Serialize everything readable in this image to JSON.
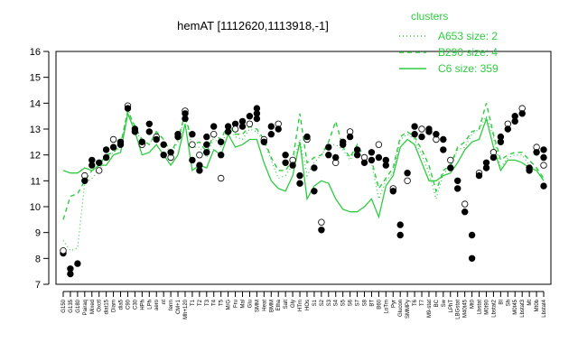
{
  "chart_data": {
    "type": "line",
    "title": "hemAT [1112620,1113918,-1]",
    "xlabel": "",
    "ylabel": "",
    "ylim": [
      7,
      16
    ],
    "yticks": [
      7,
      8,
      9,
      10,
      11,
      12,
      13,
      14,
      15,
      16
    ],
    "x_labels": [
      "G150",
      "G135",
      "G180",
      "Pairaq",
      "Mixed",
      "Oxctl",
      "diat15",
      "Diam",
      "dia5",
      "C90",
      "C30",
      "HPh",
      "LPh",
      "aero",
      "nt",
      "ferm",
      "CM+1",
      "Mh+120",
      "T1",
      "T2",
      "T3",
      "T4",
      "T5",
      "M/G",
      "Fru",
      "Mal",
      "Glu",
      "SMM",
      "Heat",
      "BMM",
      "Etha",
      "Salt",
      "Gly",
      "HTm",
      "HOs",
      "S1",
      "S2",
      "S3",
      "S4",
      "S5",
      "S6",
      "S7",
      "S8",
      "BT",
      "B60",
      "LoTm",
      "Pyr",
      "Glucon",
      "SMMPy",
      "T6",
      "T7",
      "M9-stat",
      "BC",
      "Sw",
      "LPhT",
      "LBGstat",
      "M40t45",
      "Mt0",
      "Lbstat",
      "M0t90",
      "Lbstat2",
      "BI",
      "Sh",
      "M0t45",
      "Lbstat3",
      "Mt",
      "Mt0b",
      "Lbstat4"
    ],
    "legend": {
      "title": "clusters",
      "position": "top-right",
      "entries": [
        {
          "label": "A653 size: 2",
          "style": "dotted"
        },
        {
          "label": "B290 size: 4",
          "style": "dashed"
        },
        {
          "label": "C6 size: 359",
          "style": "solid"
        }
      ]
    },
    "colors": {
      "series": "#2ecc40",
      "points": "#000000",
      "highlight": "#ffffff"
    },
    "series": [
      {
        "name": "A653 size: 2",
        "style": "dotted",
        "values": [
          8.7,
          8.3,
          8.4,
          10.9,
          11.1,
          11.4,
          11.9,
          12.1,
          12.3,
          13.8,
          13.0,
          12.5,
          12.4,
          12.9,
          12.6,
          12.0,
          12.5,
          13.5,
          12.3,
          12.3,
          11.9,
          12.7,
          12.3,
          13.1,
          12.7,
          12.6,
          13.0,
          12.9,
          12.5,
          11.8,
          11.1,
          11.2,
          11.6,
          12.6,
          11.2,
          11.7,
          12.0,
          12.4,
          12.4,
          12.2,
          11.8,
          12.3,
          11.7,
          11.7,
          10.3,
          11.0,
          11.3,
          12.6,
          12.8,
          12.6,
          12.0,
          11.3,
          10.3,
          11.3,
          11.5,
          12.2,
          12.3,
          12.8,
          13.0,
          13.5,
          12.7,
          11.5,
          11.9,
          12.0,
          12.0,
          11.6,
          11.4,
          11.0
        ]
      },
      {
        "name": "B290 size: 4",
        "style": "dashed",
        "values": [
          9.5,
          10.4,
          10.5,
          11.0,
          11.4,
          11.6,
          12.0,
          12.1,
          12.4,
          13.7,
          13.1,
          12.6,
          12.4,
          12.9,
          12.6,
          12.1,
          12.6,
          13.6,
          12.4,
          12.5,
          12.1,
          12.8,
          12.6,
          13.2,
          12.8,
          12.8,
          13.1,
          13.0,
          12.6,
          11.9,
          11.4,
          11.4,
          11.8,
          13.6,
          11.7,
          11.9,
          12.0,
          12.5,
          13.3,
          12.3,
          11.9,
          12.4,
          11.9,
          11.8,
          10.7,
          11.1,
          11.5,
          12.7,
          12.9,
          12.7,
          12.2,
          11.6,
          10.6,
          11.4,
          11.6,
          12.3,
          12.5,
          12.9,
          13.0,
          14.0,
          12.8,
          11.8,
          12.0,
          12.1,
          12.1,
          11.8,
          11.5,
          11.1
        ]
      },
      {
        "name": "C6 size: 359",
        "style": "solid",
        "values": [
          11.4,
          11.3,
          11.3,
          11.5,
          11.4,
          11.6,
          11.6,
          12.0,
          12.1,
          13.6,
          12.9,
          12.0,
          12.1,
          12.4,
          12.0,
          11.6,
          12.0,
          13.2,
          11.4,
          11.6,
          11.5,
          12.2,
          12.0,
          12.8,
          12.3,
          12.4,
          12.6,
          12.6,
          11.7,
          11.0,
          10.7,
          10.6,
          11.2,
          12.5,
          10.3,
          10.8,
          11.0,
          10.9,
          10.3,
          9.9,
          9.8,
          9.8,
          10.0,
          10.3,
          9.6,
          10.8,
          11.2,
          12.3,
          12.6,
          12.4,
          11.7,
          11.0,
          11.0,
          11.2,
          11.3,
          11.7,
          12.2,
          12.5,
          12.6,
          13.4,
          12.3,
          11.4,
          11.8,
          11.8,
          11.7,
          11.5,
          11.4,
          11.0
        ]
      }
    ],
    "points": [
      [
        0,
        8.2
      ],
      [
        0,
        8.3
      ],
      [
        1,
        7.4
      ],
      [
        1,
        7.6
      ],
      [
        2,
        7.8
      ],
      [
        3,
        11.2
      ],
      [
        3,
        11.0
      ],
      [
        4,
        11.6
      ],
      [
        4,
        11.8
      ],
      [
        5,
        11.4
      ],
      [
        5,
        11.7
      ],
      [
        6,
        11.9
      ],
      [
        6,
        12.2
      ],
      [
        7,
        12.6
      ],
      [
        7,
        12.3
      ],
      [
        8,
        12.5
      ],
      [
        8,
        12.4
      ],
      [
        9,
        13.9
      ],
      [
        9,
        13.8
      ],
      [
        10,
        13.0
      ],
      [
        10,
        12.9
      ],
      [
        11,
        12.4
      ],
      [
        11,
        12.5
      ],
      [
        12,
        12.9
      ],
      [
        12,
        13.2
      ],
      [
        13,
        12.7
      ],
      [
        13,
        12.6
      ],
      [
        14,
        12.4
      ],
      [
        14,
        12.0
      ],
      [
        15,
        11.9
      ],
      [
        15,
        12.1
      ],
      [
        16,
        12.8
      ],
      [
        16,
        12.7
      ],
      [
        17,
        13.7
      ],
      [
        17,
        13.4
      ],
      [
        17,
        13.6
      ],
      [
        18,
        12.8
      ],
      [
        18,
        12.4
      ],
      [
        18,
        11.8
      ],
      [
        19,
        11.4
      ],
      [
        19,
        11.6
      ],
      [
        19,
        12.0
      ],
      [
        20,
        12.4
      ],
      [
        20,
        12.7
      ],
      [
        20,
        12.1
      ],
      [
        21,
        12.8
      ],
      [
        21,
        13.1
      ],
      [
        22,
        12.0
      ],
      [
        22,
        12.5
      ],
      [
        22,
        11.1
      ],
      [
        23,
        13.1
      ],
      [
        23,
        12.9
      ],
      [
        24,
        13.2
      ],
      [
        24,
        13.0
      ],
      [
        25,
        13.3
      ],
      [
        25,
        13.1
      ],
      [
        26,
        13.5
      ],
      [
        26,
        13.2
      ],
      [
        27,
        13.8
      ],
      [
        27,
        13.6
      ],
      [
        27,
        13.4
      ],
      [
        28,
        12.6
      ],
      [
        28,
        12.5
      ],
      [
        29,
        13.1
      ],
      [
        29,
        12.8
      ],
      [
        30,
        13.2
      ],
      [
        30,
        13.0
      ],
      [
        31,
        12.0
      ],
      [
        31,
        11.7
      ],
      [
        32,
        11.8
      ],
      [
        32,
        11.6
      ],
      [
        33,
        11.2
      ],
      [
        33,
        10.9
      ],
      [
        34,
        12.6
      ],
      [
        34,
        12.7
      ],
      [
        35,
        10.6
      ],
      [
        35,
        11.5
      ],
      [
        36,
        9.4
      ],
      [
        36,
        9.1
      ],
      [
        37,
        12.0
      ],
      [
        37,
        12.3
      ],
      [
        38,
        11.7
      ],
      [
        38,
        11.9
      ],
      [
        39,
        12.5
      ],
      [
        39,
        12.4
      ],
      [
        40,
        12.9
      ],
      [
        40,
        12.7
      ],
      [
        41,
        12.2
      ],
      [
        41,
        12.0
      ],
      [
        42,
        11.9
      ],
      [
        42,
        11.7
      ],
      [
        43,
        12.1
      ],
      [
        43,
        11.8
      ],
      [
        44,
        12.4
      ],
      [
        44,
        11.9
      ],
      [
        45,
        11.6
      ],
      [
        45,
        11.8
      ],
      [
        46,
        10.7
      ],
      [
        46,
        10.6
      ],
      [
        47,
        9.3
      ],
      [
        47,
        8.9
      ],
      [
        48,
        11.0
      ],
      [
        48,
        11.3
      ],
      [
        49,
        12.8
      ],
      [
        49,
        13.1
      ],
      [
        50,
        13.0
      ],
      [
        50,
        12.7
      ],
      [
        51,
        12.9
      ],
      [
        51,
        13.0
      ],
      [
        52,
        12.6
      ],
      [
        52,
        12.8
      ],
      [
        53,
        12.2
      ],
      [
        53,
        12.6
      ],
      [
        54,
        11.8
      ],
      [
        54,
        11.5
      ],
      [
        55,
        11.0
      ],
      [
        55,
        10.7
      ],
      [
        56,
        10.1
      ],
      [
        56,
        9.8
      ],
      [
        57,
        8.9
      ],
      [
        57,
        8.0
      ],
      [
        58,
        11.3
      ],
      [
        58,
        11.2
      ],
      [
        59,
        11.5
      ],
      [
        59,
        11.7
      ],
      [
        60,
        12.1
      ],
      [
        60,
        11.9
      ],
      [
        61,
        12.7
      ],
      [
        61,
        12.5
      ],
      [
        62,
        13.2
      ],
      [
        62,
        13.0
      ],
      [
        63,
        13.5
      ],
      [
        63,
        13.3
      ],
      [
        64,
        13.8
      ],
      [
        64,
        13.6
      ],
      [
        65,
        11.5
      ],
      [
        65,
        11.4
      ],
      [
        66,
        12.3
      ],
      [
        66,
        12.1
      ],
      [
        67,
        11.9
      ],
      [
        67,
        12.2
      ],
      [
        67,
        11.6
      ],
      [
        67,
        10.8
      ]
    ]
  }
}
